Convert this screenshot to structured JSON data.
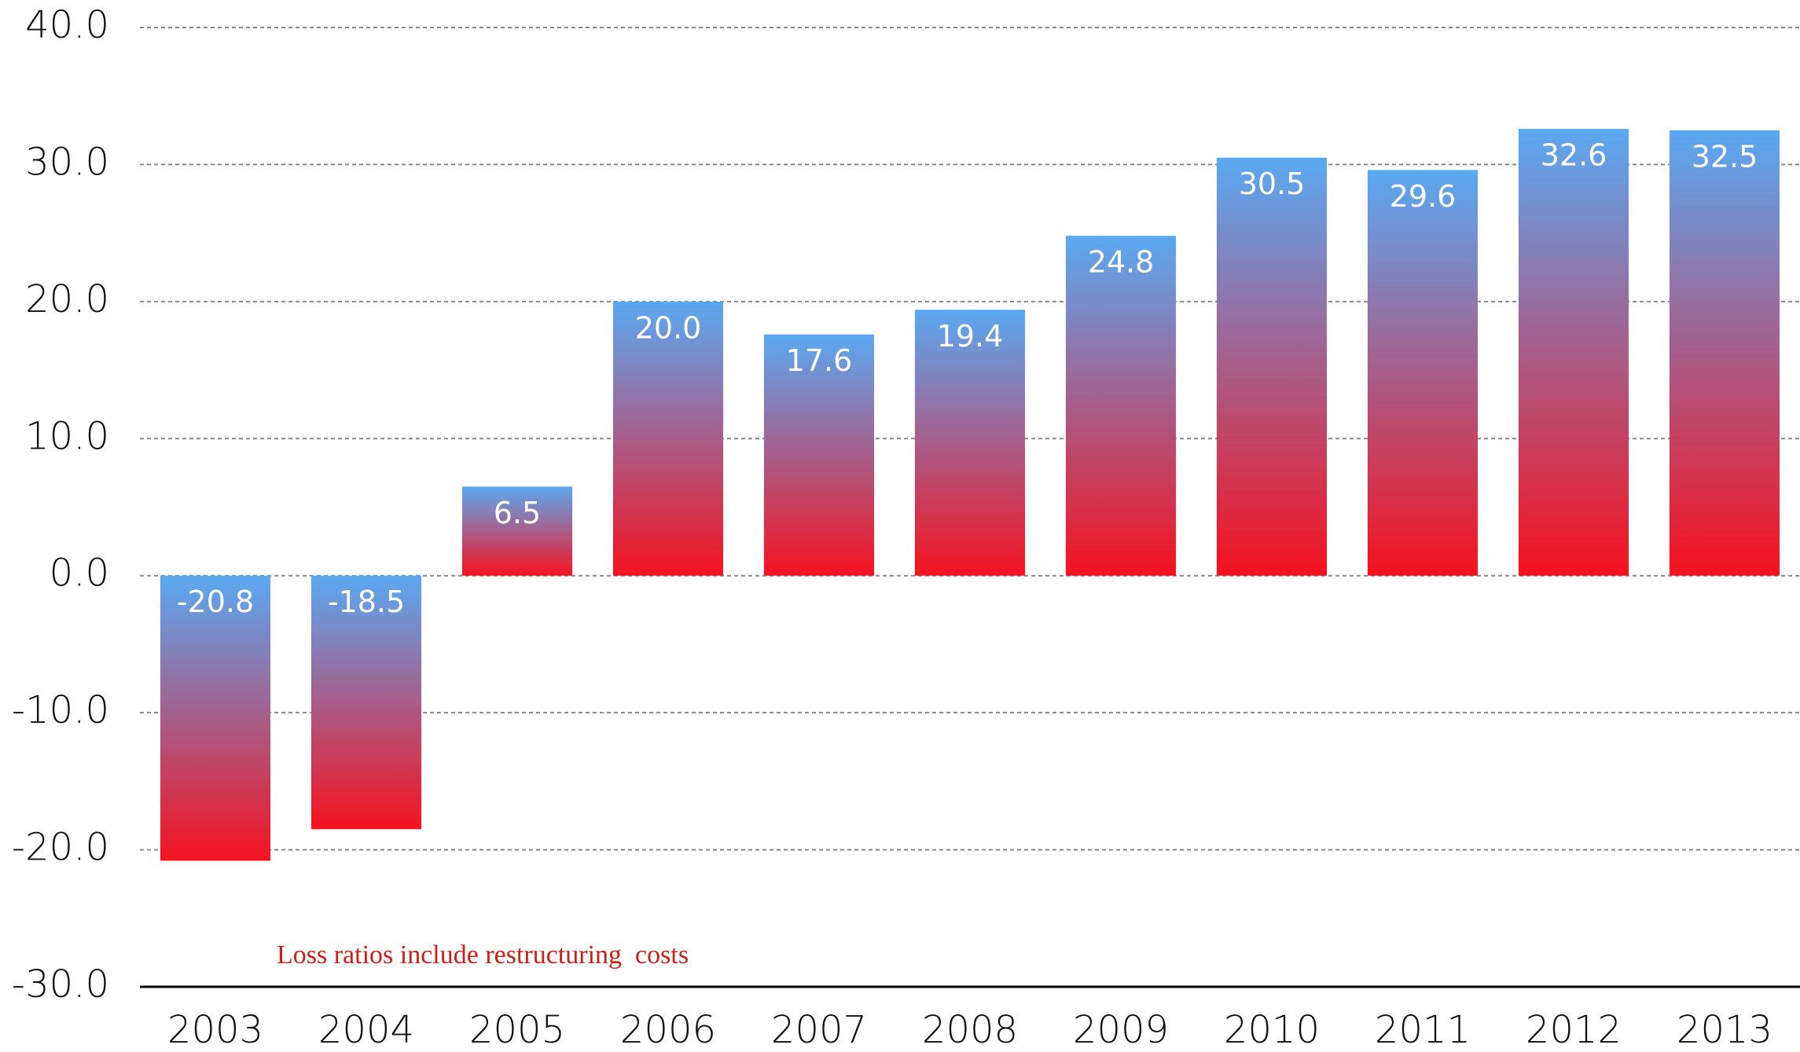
{
  "chart_data": {
    "type": "bar",
    "categories": [
      "2003",
      "2004",
      "2005",
      "2006",
      "2007",
      "2008",
      "2009",
      "2010",
      "2011",
      "2012",
      "2013"
    ],
    "values": [
      -20.8,
      -18.5,
      6.5,
      20.0,
      17.6,
      19.4,
      24.8,
      30.5,
      29.6,
      32.6,
      32.5
    ],
    "value_labels": [
      "-20.8",
      "-18.5",
      "6.5",
      "20.0",
      "17.6",
      "19.4",
      "24.8",
      "30.5",
      "29.6",
      "32.6",
      "32.5"
    ],
    "color": [
      "#5aa9f2",
      "#f5121f"
    ],
    "ylim": [
      -30,
      40
    ],
    "yticks": [
      {
        "value": -30,
        "label": "-30.0"
      },
      {
        "value": -20,
        "label": "-20.0"
      },
      {
        "value": -10,
        "label": "-10.0"
      },
      {
        "value": 0,
        "label": "0.0"
      },
      {
        "value": 10,
        "label": "10.0"
      },
      {
        "value": 20,
        "label": "20.0"
      },
      {
        "value": 30,
        "label": "30.0"
      },
      {
        "value": 40,
        "label": "40.0"
      }
    ],
    "grid": true,
    "annotation": "Loss ratios include restructuring  costs"
  }
}
